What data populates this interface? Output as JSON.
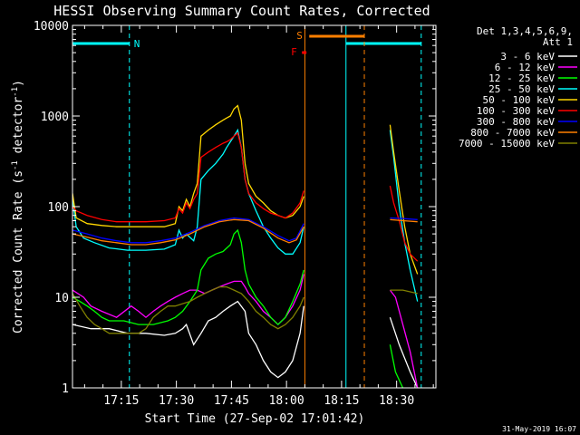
{
  "chart_data": {
    "type": "line",
    "title": "HESSI Observing Summary Count Rates, Corrected",
    "xlabel": "Start Time (27-Sep-02 17:01:42)",
    "ylabel_main": "Corrected Count Rate (s",
    "ylabel_sup1": "-1",
    "ylabel_mid": " detector",
    "ylabel_sup2": "-1",
    "ylabel_end": ")",
    "footer": "31-May-2019 16:07",
    "yscale": "log",
    "ylim": [
      1,
      10000
    ],
    "xlim_minutes": [
      0,
      99
    ],
    "x_unit": "minutes after 17:01:42",
    "y_ticks": [
      {
        "value": 1,
        "label": "1"
      },
      {
        "value": 10,
        "label": "10"
      },
      {
        "value": 100,
        "label": "100"
      },
      {
        "value": 1000,
        "label": "1000"
      },
      {
        "value": 10000,
        "label": "10000"
      }
    ],
    "x_ticks": [
      {
        "minute": 13.3,
        "label": "17:15"
      },
      {
        "minute": 28.3,
        "label": "17:30"
      },
      {
        "minute": 43.3,
        "label": "17:45"
      },
      {
        "minute": 58.3,
        "label": "18:00"
      },
      {
        "minute": 73.3,
        "label": "18:15"
      },
      {
        "minute": 88.3,
        "label": "18:30"
      }
    ],
    "legend_header": [
      "Det 1,3,4,5,6,9,",
      "Att 1"
    ],
    "legend_position": "right",
    "gaps": [
      [
        63.3,
        86.5
      ]
    ],
    "series": [
      {
        "name": "3 - 6 keV",
        "color": "#ffffff",
        "points": [
          [
            0,
            5
          ],
          [
            5,
            4.5
          ],
          [
            10,
            4.5
          ],
          [
            15,
            4
          ],
          [
            20,
            4
          ],
          [
            25,
            3.8
          ],
          [
            28,
            4
          ],
          [
            30,
            4.5
          ],
          [
            31,
            5
          ],
          [
            33,
            3
          ],
          [
            35,
            4
          ],
          [
            37,
            5.5
          ],
          [
            39,
            6
          ],
          [
            41,
            7
          ],
          [
            43,
            8
          ],
          [
            45,
            9
          ],
          [
            47,
            7
          ],
          [
            48,
            4
          ],
          [
            50,
            3
          ],
          [
            52,
            2
          ],
          [
            54,
            1.5
          ],
          [
            56,
            1.3
          ],
          [
            58,
            1.5
          ],
          [
            60,
            2
          ],
          [
            62,
            4
          ],
          [
            63,
            8
          ],
          [
            86.5,
            6
          ],
          [
            89,
            3
          ],
          [
            92,
            1.5
          ],
          [
            94,
            1
          ]
        ]
      },
      {
        "name": "6 - 12 keV",
        "color": "#ff00ff",
        "points": [
          [
            0,
            12
          ],
          [
            3,
            10
          ],
          [
            5,
            8
          ],
          [
            8,
            7
          ],
          [
            12,
            6
          ],
          [
            16,
            8
          ],
          [
            18,
            7
          ],
          [
            20,
            6
          ],
          [
            22,
            7
          ],
          [
            24,
            8
          ],
          [
            26,
            9
          ],
          [
            28,
            10
          ],
          [
            30,
            11
          ],
          [
            32,
            12
          ],
          [
            34,
            12
          ],
          [
            36,
            11
          ],
          [
            38,
            12
          ],
          [
            40,
            13
          ],
          [
            42,
            14
          ],
          [
            44,
            15
          ],
          [
            46,
            15
          ],
          [
            47,
            13
          ],
          [
            48,
            11
          ],
          [
            50,
            9
          ],
          [
            52,
            7
          ],
          [
            54,
            6
          ],
          [
            56,
            5
          ],
          [
            58,
            6
          ],
          [
            60,
            8
          ],
          [
            62,
            12
          ],
          [
            63,
            18
          ],
          [
            86.5,
            12
          ],
          [
            88,
            10
          ],
          [
            90,
            5
          ],
          [
            92,
            2.5
          ],
          [
            94,
            1
          ]
        ]
      },
      {
        "name": "12 - 25 keV",
        "color": "#00ff00",
        "points": [
          [
            0,
            10
          ],
          [
            2,
            9
          ],
          [
            4,
            8
          ],
          [
            6,
            7
          ],
          [
            8,
            6
          ],
          [
            10,
            5.5
          ],
          [
            14,
            5.5
          ],
          [
            18,
            5
          ],
          [
            22,
            5
          ],
          [
            26,
            5.5
          ],
          [
            28,
            6
          ],
          [
            30,
            7
          ],
          [
            32,
            9
          ],
          [
            34,
            12
          ],
          [
            35,
            20
          ],
          [
            37,
            27
          ],
          [
            39,
            30
          ],
          [
            41,
            32
          ],
          [
            43,
            38
          ],
          [
            44,
            50
          ],
          [
            45,
            55
          ],
          [
            46,
            40
          ],
          [
            47,
            20
          ],
          [
            48,
            14
          ],
          [
            50,
            10
          ],
          [
            52,
            8
          ],
          [
            54,
            6
          ],
          [
            56,
            5
          ],
          [
            58,
            6
          ],
          [
            60,
            9
          ],
          [
            62,
            14
          ],
          [
            63,
            20
          ],
          [
            86.5,
            3
          ],
          [
            88,
            1.5
          ],
          [
            90,
            1
          ]
        ]
      },
      {
        "name": "25 - 50 keV",
        "color": "#00ffff",
        "points": [
          [
            0,
            120
          ],
          [
            1,
            60
          ],
          [
            3,
            45
          ],
          [
            6,
            40
          ],
          [
            10,
            35
          ],
          [
            15,
            33
          ],
          [
            20,
            33
          ],
          [
            25,
            34
          ],
          [
            28,
            38
          ],
          [
            29,
            55
          ],
          [
            30,
            45
          ],
          [
            31,
            50
          ],
          [
            33,
            42
          ],
          [
            34,
            60
          ],
          [
            35,
            200
          ],
          [
            37,
            250
          ],
          [
            39,
            300
          ],
          [
            41,
            380
          ],
          [
            42,
            450
          ],
          [
            43,
            520
          ],
          [
            44,
            600
          ],
          [
            45,
            700
          ],
          [
            46,
            450
          ],
          [
            47,
            200
          ],
          [
            48,
            140
          ],
          [
            50,
            90
          ],
          [
            52,
            60
          ],
          [
            54,
            45
          ],
          [
            56,
            35
          ],
          [
            58,
            30
          ],
          [
            60,
            30
          ],
          [
            62,
            40
          ],
          [
            63,
            60
          ],
          [
            86.5,
            700
          ],
          [
            87.5,
            350
          ],
          [
            89,
            100
          ],
          [
            90.5,
            40
          ],
          [
            92,
            20
          ],
          [
            94,
            9
          ]
        ]
      },
      {
        "name": "50 - 100 keV",
        "color": "#ffd700",
        "points": [
          [
            0,
            140
          ],
          [
            1,
            75
          ],
          [
            4,
            65
          ],
          [
            8,
            62
          ],
          [
            12,
            60
          ],
          [
            16,
            60
          ],
          [
            20,
            60
          ],
          [
            25,
            60
          ],
          [
            28,
            65
          ],
          [
            29,
            100
          ],
          [
            30,
            90
          ],
          [
            31,
            120
          ],
          [
            32,
            100
          ],
          [
            33,
            140
          ],
          [
            34,
            180
          ],
          [
            35,
            600
          ],
          [
            37,
            700
          ],
          [
            39,
            800
          ],
          [
            41,
            900
          ],
          [
            42,
            950
          ],
          [
            43,
            1000
          ],
          [
            44,
            1200
          ],
          [
            45,
            1300
          ],
          [
            46,
            900
          ],
          [
            47,
            300
          ],
          [
            48,
            180
          ],
          [
            50,
            130
          ],
          [
            52,
            110
          ],
          [
            54,
            90
          ],
          [
            56,
            80
          ],
          [
            58,
            75
          ],
          [
            60,
            80
          ],
          [
            62,
            100
          ],
          [
            63,
            130
          ],
          [
            86.5,
            800
          ],
          [
            87.5,
            400
          ],
          [
            89,
            150
          ],
          [
            90.5,
            60
          ],
          [
            92,
            30
          ],
          [
            94,
            18
          ]
        ]
      },
      {
        "name": "100 - 300 keV",
        "color": "#ff0000",
        "points": [
          [
            0,
            100
          ],
          [
            1,
            90
          ],
          [
            4,
            80
          ],
          [
            8,
            72
          ],
          [
            12,
            68
          ],
          [
            16,
            68
          ],
          [
            20,
            68
          ],
          [
            25,
            70
          ],
          [
            28,
            75
          ],
          [
            29,
            95
          ],
          [
            30,
            85
          ],
          [
            31,
            110
          ],
          [
            32,
            95
          ],
          [
            33,
            120
          ],
          [
            34,
            140
          ],
          [
            35,
            350
          ],
          [
            37,
            400
          ],
          [
            39,
            450
          ],
          [
            41,
            500
          ],
          [
            42,
            520
          ],
          [
            43,
            550
          ],
          [
            44,
            600
          ],
          [
            45,
            650
          ],
          [
            46,
            450
          ],
          [
            47,
            200
          ],
          [
            48,
            140
          ],
          [
            50,
            110
          ],
          [
            52,
            95
          ],
          [
            54,
            85
          ],
          [
            56,
            80
          ],
          [
            58,
            75
          ],
          [
            60,
            85
          ],
          [
            62,
            110
          ],
          [
            63,
            150
          ],
          [
            86.5,
            170
          ],
          [
            87.5,
            110
          ],
          [
            89,
            70
          ],
          [
            90.5,
            40
          ],
          [
            92,
            30
          ],
          [
            94,
            25
          ]
        ]
      },
      {
        "name": "300 - 800 keV",
        "color": "#0000ff",
        "points": [
          [
            0,
            55
          ],
          [
            4,
            50
          ],
          [
            8,
            45
          ],
          [
            12,
            42
          ],
          [
            16,
            40
          ],
          [
            20,
            40
          ],
          [
            24,
            42
          ],
          [
            28,
            45
          ],
          [
            32,
            52
          ],
          [
            36,
            62
          ],
          [
            40,
            70
          ],
          [
            44,
            75
          ],
          [
            48,
            72
          ],
          [
            52,
            60
          ],
          [
            56,
            48
          ],
          [
            59,
            42
          ],
          [
            61,
            45
          ],
          [
            63,
            65
          ],
          [
            86.5,
            75
          ],
          [
            90,
            74
          ],
          [
            94,
            72
          ]
        ]
      },
      {
        "name": "800 - 7000 keV",
        "color": "#ff8000",
        "points": [
          [
            0,
            50
          ],
          [
            4,
            46
          ],
          [
            8,
            42
          ],
          [
            12,
            40
          ],
          [
            16,
            38
          ],
          [
            20,
            38
          ],
          [
            24,
            40
          ],
          [
            28,
            43
          ],
          [
            32,
            50
          ],
          [
            36,
            60
          ],
          [
            40,
            68
          ],
          [
            44,
            72
          ],
          [
            48,
            70
          ],
          [
            52,
            58
          ],
          [
            56,
            45
          ],
          [
            59,
            40
          ],
          [
            61,
            43
          ],
          [
            63,
            60
          ],
          [
            86.5,
            72
          ],
          [
            90,
            70
          ],
          [
            94,
            68
          ]
        ]
      },
      {
        "name": "7000 - 15000 keV",
        "color": "#808000",
        "points": [
          [
            0,
            11
          ],
          [
            2,
            8
          ],
          [
            4,
            6
          ],
          [
            6,
            5
          ],
          [
            8,
            4.5
          ],
          [
            10,
            4
          ],
          [
            14,
            4
          ],
          [
            18,
            4
          ],
          [
            20,
            4.5
          ],
          [
            22,
            6
          ],
          [
            24,
            7
          ],
          [
            26,
            8
          ],
          [
            28,
            8
          ],
          [
            30,
            8.5
          ],
          [
            32,
            9
          ],
          [
            34,
            10
          ],
          [
            36,
            11
          ],
          [
            38,
            12
          ],
          [
            40,
            13
          ],
          [
            42,
            13
          ],
          [
            44,
            12
          ],
          [
            46,
            11
          ],
          [
            48,
            9
          ],
          [
            50,
            7
          ],
          [
            52,
            6
          ],
          [
            54,
            5
          ],
          [
            56,
            4.5
          ],
          [
            58,
            5
          ],
          [
            60,
            6
          ],
          [
            62,
            8
          ],
          [
            63,
            10
          ],
          [
            86.5,
            12
          ],
          [
            90,
            12
          ],
          [
            94,
            11
          ]
        ]
      }
    ],
    "night_intervals": [
      [
        0,
        15.5
      ],
      [
        74.5,
        95
      ]
    ],
    "night_marker": "N",
    "saa_bar": {
      "label": "S",
      "start": 64.5,
      "end": 79.5,
      "color": "#ff7f00"
    },
    "flare_marker": {
      "label": "F",
      "minute": 63,
      "color": "#ff0000"
    },
    "vertical_lines": [
      {
        "minute": 0,
        "color": "#00ffff",
        "style": "solid"
      },
      {
        "minute": 15.5,
        "color": "#00ffff",
        "style": "dashed"
      },
      {
        "minute": 63.3,
        "color": "#ff8000",
        "style": "solid"
      },
      {
        "minute": 74.5,
        "color": "#00ffff",
        "style": "solid"
      },
      {
        "minute": 79.5,
        "color": "#ff8000",
        "style": "dashed"
      },
      {
        "minute": 95,
        "color": "#00ffff",
        "style": "dashed"
      }
    ]
  }
}
